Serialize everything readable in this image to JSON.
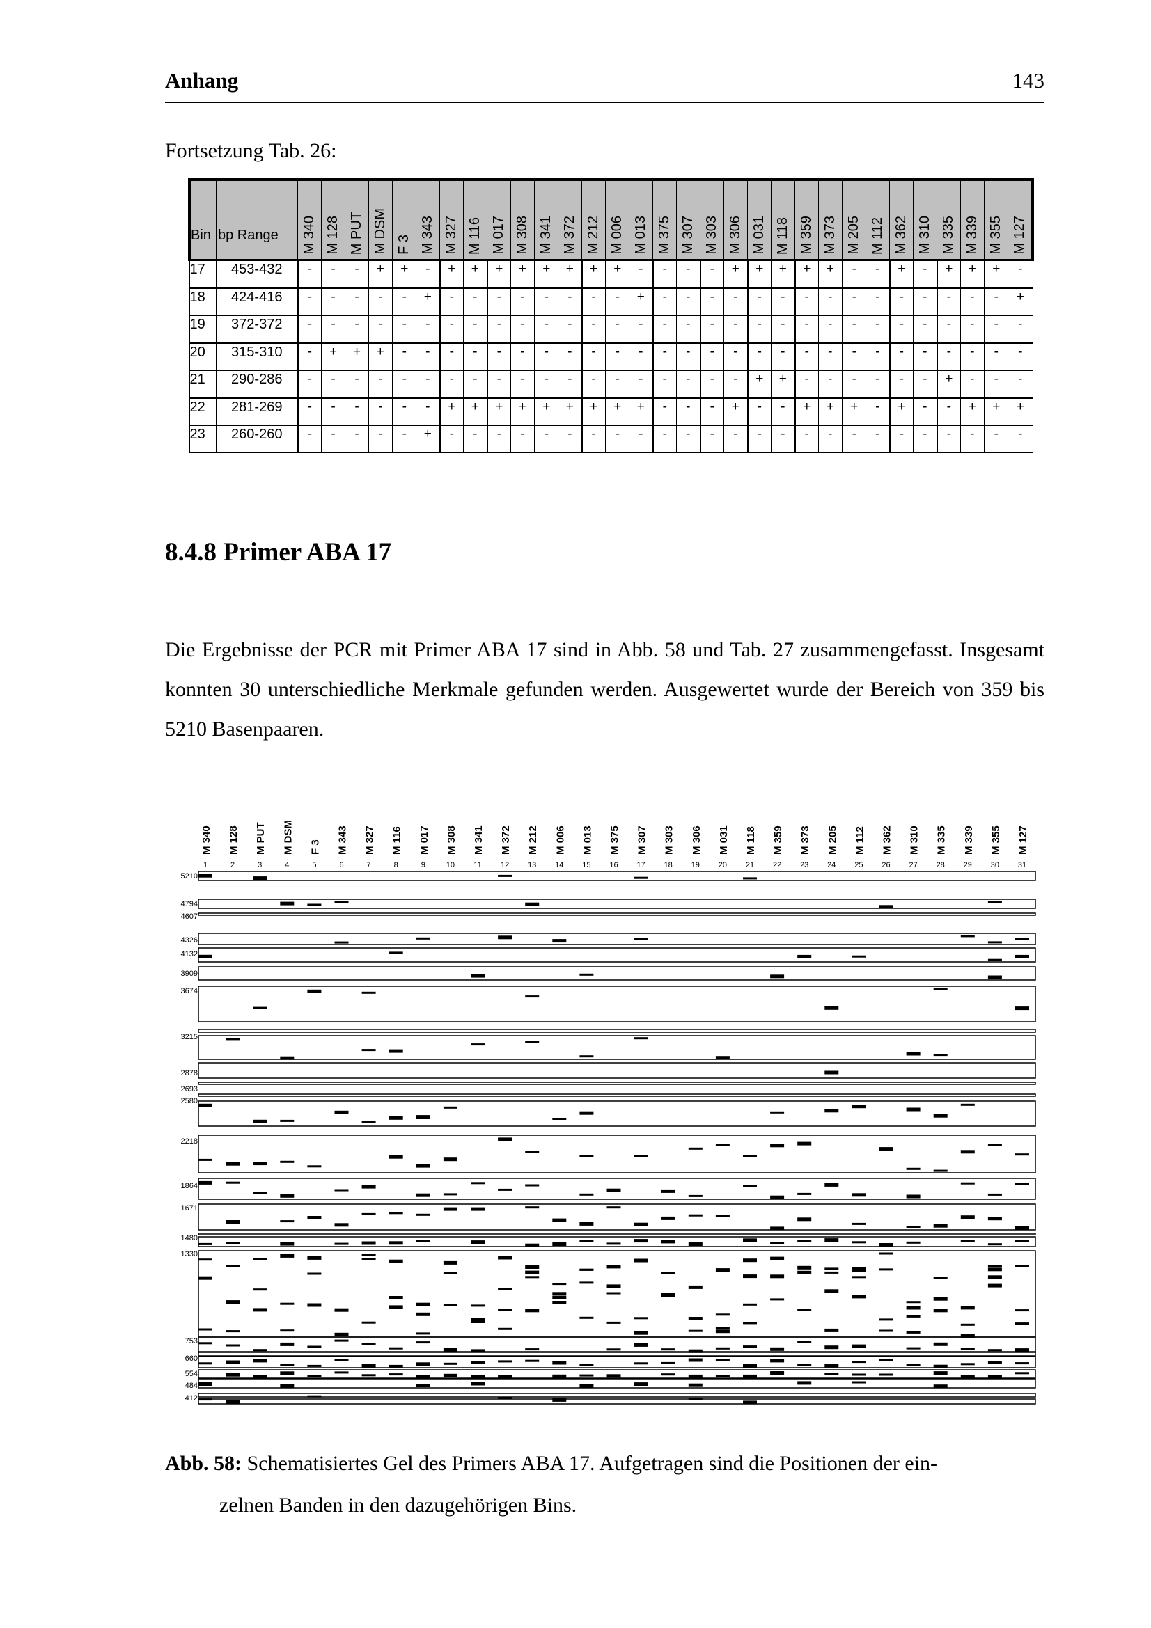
{
  "header": {
    "running_title": "Anhang",
    "page_number": "143"
  },
  "table": {
    "caption": "Fortsetzung Tab. 26:",
    "col_bin": "Bin",
    "col_range": "bp Range",
    "columns": [
      "M 340",
      "M 128",
      "M PUT",
      "M DSM",
      "F 3",
      "M 343",
      "M 327",
      "M 116",
      "M 017",
      "M 308",
      "M 341",
      "M 372",
      "M 212",
      "M 006",
      "M 013",
      "M 375",
      "M 307",
      "M 303",
      "M 306",
      "M 031",
      "M 118",
      "M 359",
      "M 373",
      "M 205",
      "M 112",
      "M 362",
      "M 310",
      "M 335",
      "M 339",
      "M 355",
      "M 127"
    ],
    "rows": [
      {
        "bin": "17",
        "range": "453-432",
        "values": [
          "-",
          "-",
          "-",
          "+",
          "+",
          "-",
          "+",
          "+",
          "+",
          "+",
          "+",
          "+",
          "+",
          "+",
          "-",
          "-",
          "-",
          "-",
          "+",
          "+",
          "+",
          "+",
          "+",
          "-",
          "-",
          "+",
          "-",
          "+",
          "+",
          "+",
          "-"
        ]
      },
      {
        "bin": "18",
        "range": "424-416",
        "values": [
          "-",
          "-",
          "-",
          "-",
          "-",
          "+",
          "-",
          "-",
          "-",
          "-",
          "-",
          "-",
          "-",
          "-",
          "+",
          "-",
          "-",
          "-",
          "-",
          "-",
          "-",
          "-",
          "-",
          "-",
          "-",
          "-",
          "-",
          "-",
          "-",
          "-",
          "+"
        ]
      },
      {
        "bin": "19",
        "range": "372-372",
        "values": [
          "-",
          "-",
          "-",
          "-",
          "-",
          "-",
          "-",
          "-",
          "-",
          "-",
          "-",
          "-",
          "-",
          "-",
          "-",
          "-",
          "-",
          "-",
          "-",
          "-",
          "-",
          "-",
          "-",
          "-",
          "-",
          "-",
          "-",
          "-",
          "-",
          "-",
          "-"
        ]
      },
      {
        "bin": "20",
        "range": "315-310",
        "values": [
          "-",
          "+",
          "+",
          "+",
          "-",
          "-",
          "-",
          "-",
          "-",
          "-",
          "-",
          "-",
          "-",
          "-",
          "-",
          "-",
          "-",
          "-",
          "-",
          "-",
          "-",
          "-",
          "-",
          "-",
          "-",
          "-",
          "-",
          "-",
          "-",
          "-",
          "-"
        ]
      },
      {
        "bin": "21",
        "range": "290-286",
        "values": [
          "-",
          "-",
          "-",
          "-",
          "-",
          "-",
          "-",
          "-",
          "-",
          "-",
          "-",
          "-",
          "-",
          "-",
          "-",
          "-",
          "-",
          "-",
          "-",
          "+",
          "+",
          "-",
          "-",
          "-",
          "-",
          "-",
          "-",
          "+",
          "-",
          "-",
          "-"
        ]
      },
      {
        "bin": "22",
        "range": "281-269",
        "values": [
          "-",
          "-",
          "-",
          "-",
          "-",
          "-",
          "+",
          "+",
          "+",
          "+",
          "+",
          "+",
          "+",
          "+",
          "+",
          "-",
          "-",
          "-",
          "+",
          "-",
          "-",
          "+",
          "+",
          "+",
          "-",
          "+",
          "-",
          "-",
          "+",
          "+",
          "+"
        ]
      },
      {
        "bin": "23",
        "range": "260-260",
        "values": [
          "-",
          "-",
          "-",
          "-",
          "-",
          "+",
          "-",
          "-",
          "-",
          "-",
          "-",
          "-",
          "-",
          "-",
          "-",
          "-",
          "-",
          "-",
          "-",
          "-",
          "-",
          "-",
          "-",
          "-",
          "-",
          "-",
          "-",
          "-",
          "-",
          "-",
          "-"
        ]
      }
    ]
  },
  "section": {
    "title": "8.4.8  Primer ABA 17",
    "paragraph": "Die Ergebnisse der PCR mit Primer ABA 17 sind in Abb. 58 und Tab. 27 zusammengefasst. Insgesamt konnten 30 unterschiedliche Merkmale gefunden werden. Ausgewertet wurde der Bereich von 359 bis 5210 Basenpaaren."
  },
  "gel": {
    "lanes": [
      "M 340",
      "M 128",
      "M PUT",
      "M DSM",
      "F 3",
      "M 343",
      "M 327",
      "M 116",
      "M 017",
      "M 308",
      "M 341",
      "M 372",
      "M 212",
      "M 006",
      "M 013",
      "M 375",
      "M 307",
      "M 303",
      "M 306",
      "M 031",
      "M 118",
      "M 359",
      "M 373",
      "M 205",
      "M 112",
      "M 362",
      "M 310",
      "M 335",
      "M 339",
      "M 355",
      "M 127"
    ],
    "lane_numbers": [
      "1",
      "2",
      "3",
      "4",
      "5",
      "6",
      "7",
      "8",
      "9",
      "10",
      "11",
      "12",
      "13",
      "14",
      "15",
      "16",
      "17",
      "18",
      "19",
      "20",
      "21",
      "22",
      "23",
      "24",
      "25",
      "26",
      "27",
      "28",
      "29",
      "30",
      "31"
    ],
    "ladder": [
      "5210",
      "4794",
      "4607",
      "4326",
      "4132",
      "3909",
      "3674",
      "3215",
      "2878",
      "2693",
      "2580",
      "2218",
      "1864",
      "1671",
      "1480",
      "1330",
      "753",
      "660",
      "554",
      "484",
      "412"
    ]
  },
  "figure": {
    "label": "Abb. 58:",
    "caption_line1": " Schematisiertes Gel des Primers ABA 17. Aufgetragen sind die Positionen der ein-",
    "caption_line2": "zelnen Banden in den dazugehörigen Bins."
  }
}
